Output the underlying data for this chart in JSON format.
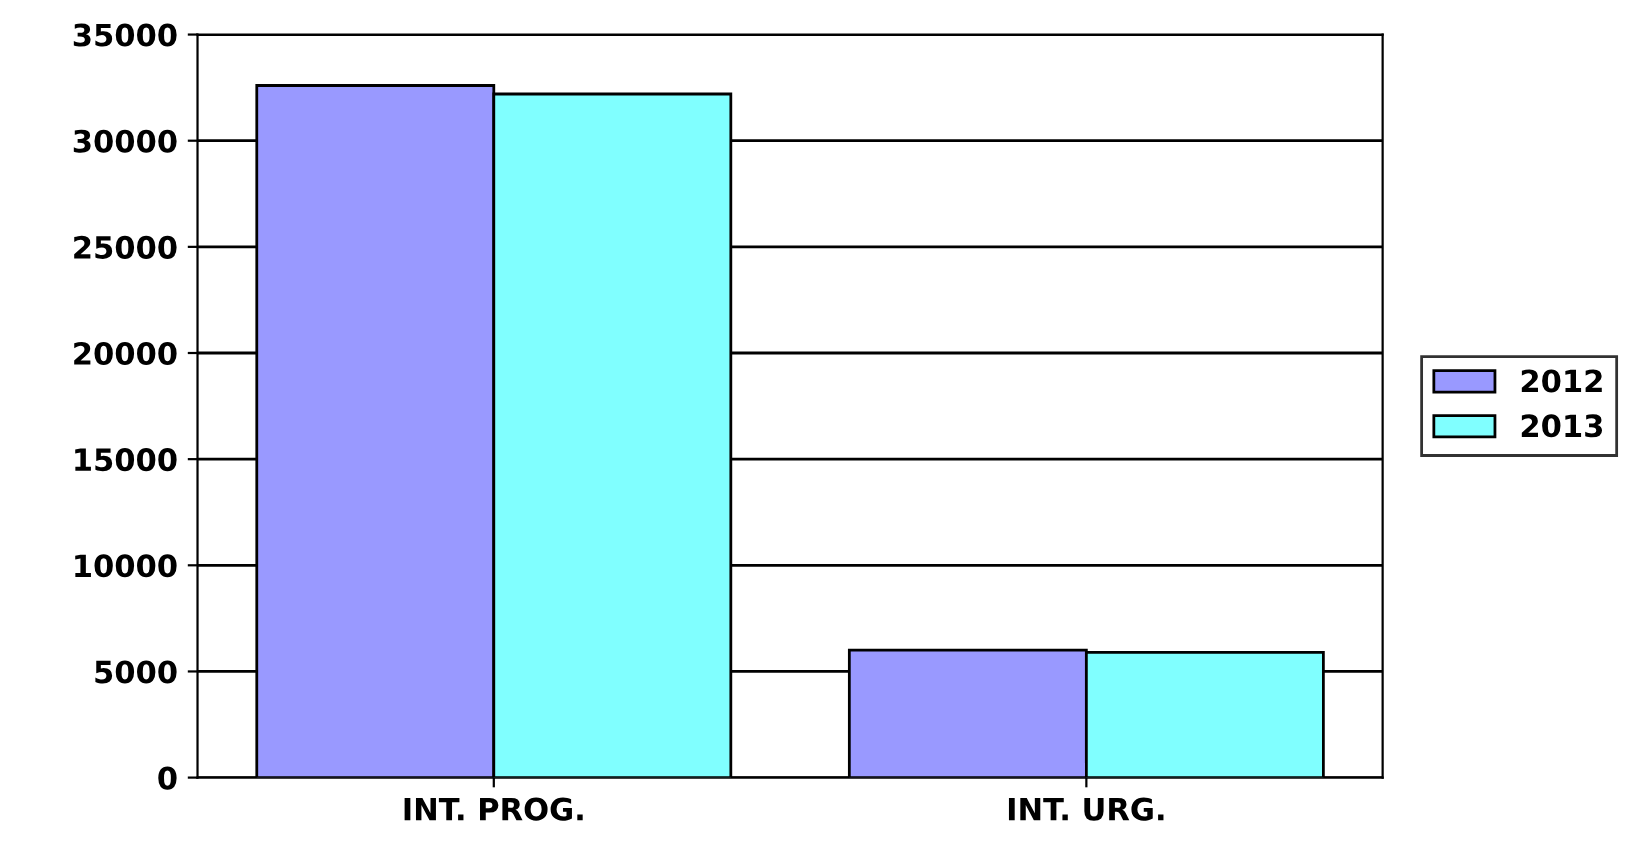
{
  "chart_data": {
    "type": "bar",
    "categories": [
      "INT. PROG.",
      "INT. URG."
    ],
    "series": [
      {
        "name": "2012",
        "color": "#9999ff",
        "values": [
          32600,
          6000
        ]
      },
      {
        "name": "2013",
        "color": "#80ffff",
        "values": [
          32200,
          5900
        ]
      }
    ],
    "ylim": [
      0,
      35000
    ],
    "yticks": [
      0,
      5000,
      10000,
      15000,
      20000,
      25000,
      30000,
      35000
    ],
    "grid": "y",
    "legend": "right"
  }
}
